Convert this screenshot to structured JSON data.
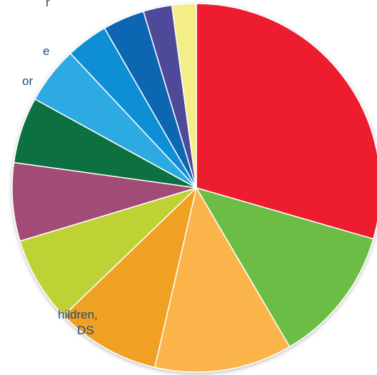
{
  "chart_data": {
    "type": "pie",
    "start_angle_deg": 0,
    "direction": "clockwise",
    "slices": [
      {
        "value": 30.5,
        "color": "#ed1c2e"
      },
      {
        "value": 12.5,
        "color": "#6cbd45"
      },
      {
        "value": 12.5,
        "color": "#fbb44a"
      },
      {
        "value": 9.5,
        "color": "#f0a020"
      },
      {
        "value": 7.8,
        "color": "#bfd234"
      },
      {
        "value": 7.1,
        "color": "#a24b76"
      },
      {
        "value": 6.0,
        "color": "#0b7040"
      },
      {
        "value": 5.2,
        "color": "#2eaae2"
      },
      {
        "value": 3.8,
        "color": "#0f8ed5"
      },
      {
        "value": 3.8,
        "color": "#0e66b1"
      },
      {
        "value": 2.6,
        "color": "#4f4a9a"
      },
      {
        "value": 2.2,
        "color": "#f4ee88"
      }
    ],
    "label_fragments": [
      "r",
      "e",
      "or",
      "hildren,",
      "DS"
    ]
  }
}
